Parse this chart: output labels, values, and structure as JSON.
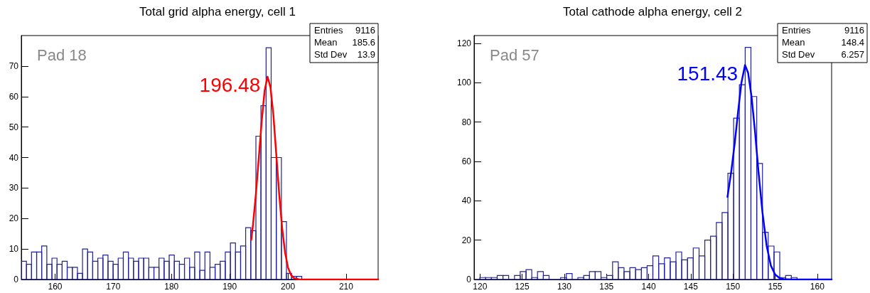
{
  "chart_data": [
    {
      "type": "histogram",
      "title": "Total grid alpha energy, cell 1",
      "xlim": [
        154.2,
        215.5
      ],
      "xticks": [
        160,
        170,
        180,
        190,
        200,
        210
      ],
      "ylim": [
        0,
        80
      ],
      "yticks": [
        0,
        10,
        20,
        30,
        40,
        50,
        60,
        70
      ],
      "grid": false,
      "annotations": [
        "Pad 18",
        {
          "text": "196.48",
          "x": 196.48,
          "y": 66.5
        },
        "Entries",
        "9116",
        "Mean",
        "185.6",
        "Std Dev",
        "13.9"
      ],
      "series": [
        {
          "color": "#22229a",
          "bins": [
            154.2,
            155.08,
            155.95,
            156.83,
            157.7,
            158.58,
            159.46,
            160.33,
            161.21,
            162.08,
            162.96,
            163.84,
            164.71,
            165.59,
            166.46,
            167.34,
            168.22,
            169.09,
            169.97,
            170.84,
            171.72,
            172.6,
            173.47,
            174.35,
            175.22,
            176.1,
            176.98,
            177.85,
            178.73,
            179.6,
            180.48,
            181.36,
            182.23,
            183.11,
            183.98,
            184.86,
            185.74,
            186.61,
            187.49,
            188.36,
            189.24,
            190.12,
            190.99,
            191.87,
            192.74,
            193.62,
            194.5,
            195.37,
            196.25,
            197.12,
            198.0,
            198.88,
            199.75,
            200.63,
            201.5,
            202.38,
            203.26,
            204.13,
            205.01,
            205.88,
            206.76,
            207.64,
            208.51,
            209.39,
            210.26,
            211.14,
            212.02,
            212.89,
            213.77,
            214.64,
            215.5
          ],
          "values": [
            6,
            5,
            9,
            9,
            11,
            5,
            7,
            5,
            6,
            4,
            4,
            2,
            10,
            9,
            6,
            7,
            8,
            6,
            5,
            7,
            9,
            7,
            6,
            7,
            7,
            4,
            4,
            7,
            6,
            8,
            6,
            5,
            7,
            4,
            9,
            3,
            9,
            4,
            5,
            6,
            9,
            12,
            9,
            11,
            17,
            16,
            47,
            57,
            76,
            40,
            40,
            19,
            2,
            1,
            1,
            0,
            0,
            0,
            0,
            0,
            0,
            0,
            0,
            0,
            0,
            0,
            0,
            0,
            0,
            0
          ]
        },
        {
          "type": "line",
          "color": "#ff0000",
          "x": [
            193.7,
            194,
            194.5,
            195,
            195.5,
            196,
            196.5,
            197,
            197.5,
            198,
            198.5,
            199,
            199.5,
            200,
            200.5,
            201,
            202,
            215.5
          ],
          "values": [
            13,
            18,
            28,
            40,
            52,
            62,
            66.5,
            63,
            54,
            41,
            28,
            17,
            9,
            4,
            1.6,
            0.5,
            0,
            0
          ]
        }
      ]
    },
    {
      "type": "histogram",
      "title": "Total cathode alpha energy, cell 2",
      "xlim": [
        119.3,
        161.7
      ],
      "xticks": [
        120,
        125,
        130,
        135,
        140,
        145,
        150,
        155,
        160
      ],
      "ylim": [
        0,
        124
      ],
      "yticks": [
        0,
        20,
        40,
        60,
        80,
        100,
        120
      ],
      "grid": false,
      "annotations": [
        "Pad 57",
        {
          "text": "151.43",
          "x": 151.43,
          "y": 109
        },
        "Entries",
        "9116",
        "Mean",
        "148.4",
        "Std Dev",
        "6.257"
      ],
      "series": [
        {
          "color": "#22229a",
          "bins": [
            119.3,
            119.98,
            120.67,
            121.35,
            122.04,
            122.72,
            123.4,
            124.09,
            124.77,
            125.46,
            126.14,
            126.82,
            127.51,
            128.19,
            128.88,
            129.56,
            130.24,
            130.93,
            131.61,
            132.3,
            132.98,
            133.66,
            134.35,
            135.03,
            135.72,
            136.4,
            137.08,
            137.77,
            138.45,
            139.14,
            139.82,
            140.5,
            141.19,
            141.87,
            142.56,
            143.24,
            143.92,
            144.61,
            145.29,
            145.98,
            146.66,
            147.34,
            148.03,
            148.71,
            149.4,
            150.08,
            150.76,
            151.45,
            152.13,
            152.82,
            153.5,
            154.18,
            154.87,
            155.55,
            156.24,
            156.92,
            157.6,
            158.29,
            158.97,
            159.66,
            160.34,
            161.02,
            161.7
          ],
          "values": [
            0,
            1,
            1,
            1,
            2,
            2,
            0,
            2,
            4,
            5,
            1,
            4,
            2,
            0,
            0,
            1,
            3,
            0,
            1,
            2,
            4,
            4,
            1,
            2,
            9,
            6,
            4,
            6,
            5,
            6,
            7,
            12,
            8,
            11,
            9,
            14,
            10,
            11,
            16,
            12,
            20,
            22,
            29,
            34,
            54,
            82,
            99,
            118,
            93,
            59,
            24,
            17,
            14,
            1,
            2,
            1,
            0,
            0,
            0,
            0,
            0,
            0
          ]
        },
        {
          "type": "line",
          "color": "#0000ff",
          "x": [
            149.35,
            149.8,
            150.2,
            150.6,
            151,
            151.43,
            151.8,
            152.2,
            152.6,
            153,
            153.5,
            154,
            154.5,
            155,
            155.5,
            156,
            157,
            161.7
          ],
          "values": [
            42,
            55,
            69,
            85,
            100,
            109,
            105,
            93,
            76,
            56,
            34,
            17,
            7,
            2.5,
            0.8,
            0.2,
            0,
            0
          ]
        }
      ]
    }
  ]
}
